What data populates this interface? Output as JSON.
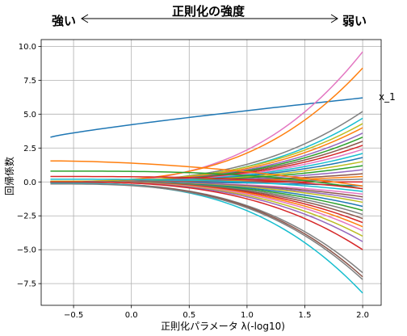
{
  "chart_data": {
    "type": "line",
    "title": "正則化の強度",
    "xlabel": "正則化パラメータ λ(-log10)",
    "ylabel": "回帰係数",
    "left_annotation": "強い",
    "right_annotation": "弱い",
    "series_annotation": "x_1",
    "xlim": [
      -0.78,
      2.16
    ],
    "ylim": [
      -9.1,
      10.5
    ],
    "x_ticks": [
      -0.5,
      0.0,
      0.5,
      1.0,
      1.5,
      2.0
    ],
    "x_tick_labels": [
      "−0.5",
      "0.0",
      "0.5",
      "1.0",
      "1.5",
      "2.0"
    ],
    "y_ticks": [
      -7.5,
      -5.0,
      -2.5,
      0.0,
      2.5,
      5.0,
      7.5,
      10.0
    ],
    "y_tick_labels": [
      "−7.5",
      "−5.0",
      "−2.5",
      "0.0",
      "2.5",
      "5.0",
      "7.5",
      "10.0"
    ],
    "grid": true,
    "x_start": -0.7,
    "x_end": 2.0,
    "series": [
      {
        "color": "#1f77b4",
        "start": 3.3,
        "end": 6.2,
        "shape": "linear"
      },
      {
        "color": "#e377c2",
        "start": -0.05,
        "end": 9.6,
        "shape": "convex"
      },
      {
        "color": "#ff7f0e",
        "start": 0.05,
        "end": 8.4,
        "shape": "convex"
      },
      {
        "color": "#17becf",
        "start": -0.05,
        "end": 4.7,
        "shape": "convex"
      },
      {
        "color": "#7f7f7f",
        "start": 0.0,
        "end": 5.2,
        "shape": "convex"
      },
      {
        "color": "#bcbd22",
        "start": 0.05,
        "end": 4.3,
        "shape": "convex"
      },
      {
        "color": "#ff7f0e",
        "start": 0.0,
        "end": 4.0,
        "shape": "convex"
      },
      {
        "color": "#9467bd",
        "start": 0.0,
        "end": 3.6,
        "shape": "convex"
      },
      {
        "color": "#2ca02c",
        "start": 0.0,
        "end": 3.3,
        "shape": "convex"
      },
      {
        "color": "#8c564b",
        "start": 0.0,
        "end": 3.0,
        "shape": "convex"
      },
      {
        "color": "#d62728",
        "start": 0.0,
        "end": 2.7,
        "shape": "convex"
      },
      {
        "color": "#e377c2",
        "start": 0.0,
        "end": 2.4,
        "shape": "convex"
      },
      {
        "color": "#17becf",
        "start": 0.0,
        "end": 2.1,
        "shape": "convex"
      },
      {
        "color": "#1f77b4",
        "start": 0.0,
        "end": 1.8,
        "shape": "convex"
      },
      {
        "color": "#bcbd22",
        "start": 0.0,
        "end": 1.5,
        "shape": "convex"
      },
      {
        "color": "#2ca02c",
        "start": 0.0,
        "end": 1.2,
        "shape": "convex"
      },
      {
        "color": "#9467bd",
        "start": 0.0,
        "end": 0.9,
        "shape": "convex"
      },
      {
        "color": "#8c564b",
        "start": 0.0,
        "end": 0.6,
        "shape": "convex"
      },
      {
        "color": "#ff7f0e",
        "start": 0.0,
        "end": 0.4,
        "shape": "convex"
      },
      {
        "color": "#7f7f7f",
        "start": 0.0,
        "end": 0.2,
        "shape": "convex"
      },
      {
        "color": "#d62728",
        "start": 0.0,
        "end": 0.0,
        "shape": "convex"
      },
      {
        "color": "#1f77b4",
        "start": 0.0,
        "end": -0.3,
        "shape": "convex"
      },
      {
        "color": "#ff7f0e",
        "start": 1.55,
        "end": -0.3,
        "shape": "bump"
      },
      {
        "color": "#2ca02c",
        "start": 0.8,
        "end": -0.5,
        "shape": "concave"
      },
      {
        "color": "#d62728",
        "start": 0.4,
        "end": -0.5,
        "shape": "concave"
      },
      {
        "color": "#17becf",
        "start": 0.2,
        "end": -0.7,
        "shape": "concave"
      },
      {
        "color": "#e377c2",
        "start": 0.0,
        "end": -0.9,
        "shape": "concave"
      },
      {
        "color": "#8c564b",
        "start": 0.0,
        "end": -1.1,
        "shape": "concave"
      },
      {
        "color": "#9467bd",
        "start": 0.0,
        "end": -1.3,
        "shape": "concave"
      },
      {
        "color": "#bcbd22",
        "start": 0.0,
        "end": -1.5,
        "shape": "concave"
      },
      {
        "color": "#1f77b4",
        "start": 0.0,
        "end": -1.8,
        "shape": "concave"
      },
      {
        "color": "#2ca02c",
        "start": 0.0,
        "end": -2.1,
        "shape": "concave"
      },
      {
        "color": "#7f7f7f",
        "start": 0.0,
        "end": -2.4,
        "shape": "concave"
      },
      {
        "color": "#8c564b",
        "start": 0.0,
        "end": -2.7,
        "shape": "concave"
      },
      {
        "color": "#d62728",
        "start": 0.0,
        "end": -3.0,
        "shape": "concave"
      },
      {
        "color": "#ff7f0e",
        "start": 0.0,
        "end": -3.3,
        "shape": "concave"
      },
      {
        "color": "#e377c2",
        "start": 0.0,
        "end": -3.6,
        "shape": "concave"
      },
      {
        "color": "#bcbd22",
        "start": 0.0,
        "end": -4.0,
        "shape": "concave"
      },
      {
        "color": "#9467bd",
        "start": 0.0,
        "end": -4.4,
        "shape": "concave"
      },
      {
        "color": "#d62728",
        "start": 0.0,
        "end": -5.0,
        "shape": "concave"
      },
      {
        "color": "#7f7f7f",
        "start": -0.1,
        "end": -6.7,
        "shape": "concave"
      },
      {
        "color": "#8c564b",
        "start": -0.1,
        "end": -7.0,
        "shape": "concave"
      },
      {
        "color": "#17becf",
        "start": -0.1,
        "end": -8.2,
        "shape": "concave"
      },
      {
        "color": "#7f7f7f",
        "start": -0.15,
        "end": -7.2,
        "shape": "concave"
      }
    ]
  }
}
